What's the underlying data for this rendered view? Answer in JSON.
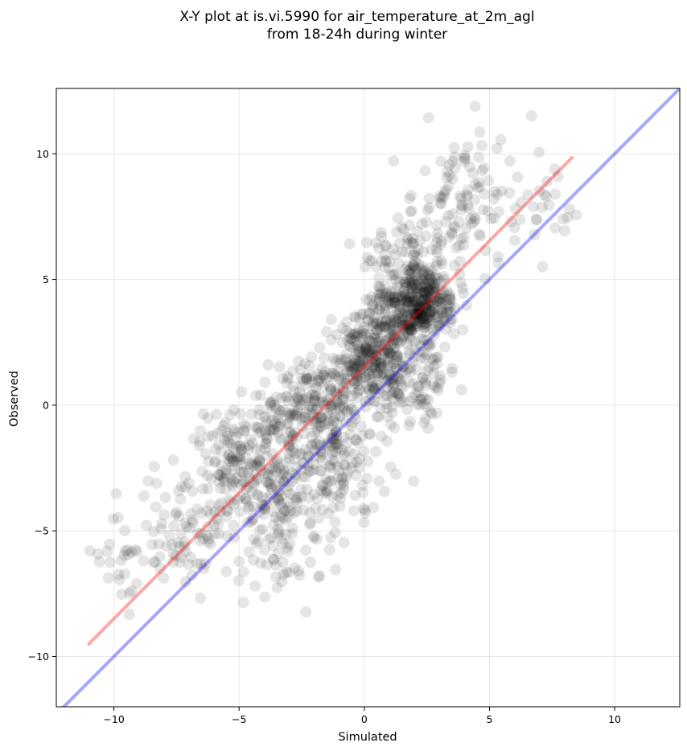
{
  "chart_data": {
    "type": "scatter",
    "title": "X-Y plot at is.vi.5990 for air_temperature_at_2m_agl",
    "subtitle": "from 18-24h during winter",
    "xlabel": "Simulated",
    "ylabel": "Observed",
    "xlim": [
      -12.3,
      12.6
    ],
    "ylim": [
      -12.0,
      12.6
    ],
    "x_ticks": [
      -10,
      -5,
      0,
      5,
      10
    ],
    "y_ticks": [
      -10,
      -5,
      0,
      5,
      10
    ],
    "x_tick_labels": [
      "−10",
      "−5",
      "0",
      "5",
      "10"
    ],
    "y_tick_labels": [
      "−10",
      "−5",
      "0",
      "5",
      "10"
    ],
    "grid": true,
    "legend": "none",
    "point_color": "#000000",
    "point_alpha": 0.1,
    "points_approx_count": 1600,
    "clusters": [
      {
        "cx": 2.4,
        "cy": 4.1,
        "sx": 0.6,
        "sy": 0.7,
        "n": 260
      },
      {
        "cx": 1.3,
        "cy": 3.5,
        "sx": 0.7,
        "sy": 0.9,
        "n": 200
      },
      {
        "cx": 0.0,
        "cy": 1.8,
        "sx": 0.6,
        "sy": 0.8,
        "n": 170
      },
      {
        "cx": 1.8,
        "cy": 1.0,
        "sx": 0.8,
        "sy": 0.9,
        "n": 130
      },
      {
        "cx": -1.5,
        "cy": 0.2,
        "sx": 0.9,
        "sy": 0.9,
        "n": 150
      },
      {
        "cx": -3.2,
        "cy": -0.8,
        "sx": 0.9,
        "sy": 1.1,
        "n": 120
      },
      {
        "cx": -5.0,
        "cy": -2.6,
        "sx": 0.9,
        "sy": 1.0,
        "n": 150
      },
      {
        "cx": -3.0,
        "cy": -3.8,
        "sx": 1.1,
        "sy": 1.2,
        "n": 120
      },
      {
        "cx": -1.0,
        "cy": -2.5,
        "sx": 1.0,
        "sy": 1.3,
        "n": 100
      },
      {
        "cx": -7.2,
        "cy": -4.8,
        "sx": 0.9,
        "sy": 1.0,
        "n": 70
      },
      {
        "cx": -9.5,
        "cy": -6.0,
        "sx": 0.9,
        "sy": 1.0,
        "n": 30
      },
      {
        "cx": -4.0,
        "cy": -6.3,
        "sx": 1.0,
        "sy": 0.9,
        "n": 40
      },
      {
        "cx": 3.5,
        "cy": 7.8,
        "sx": 0.9,
        "sy": 1.2,
        "n": 90
      },
      {
        "cx": 5.5,
        "cy": 8.5,
        "sx": 1.2,
        "sy": 1.6,
        "n": 40
      },
      {
        "cx": 7.6,
        "cy": 7.8,
        "sx": 0.5,
        "sy": 1.0,
        "n": 12
      },
      {
        "cx": 1.5,
        "cy": 6.0,
        "sx": 0.8,
        "sy": 0.8,
        "n": 60
      }
    ],
    "lines": [
      {
        "kind": "regression",
        "color": "#ff0000",
        "alpha": 0.35,
        "x": [
          -11.0,
          8.3
        ],
        "y": [
          -9.5,
          9.85
        ]
      },
      {
        "kind": "identity",
        "color": "#0000ff",
        "alpha": 0.35,
        "x": [
          -12.3,
          12.6
        ],
        "y": [
          -12.3,
          12.6
        ]
      }
    ]
  }
}
